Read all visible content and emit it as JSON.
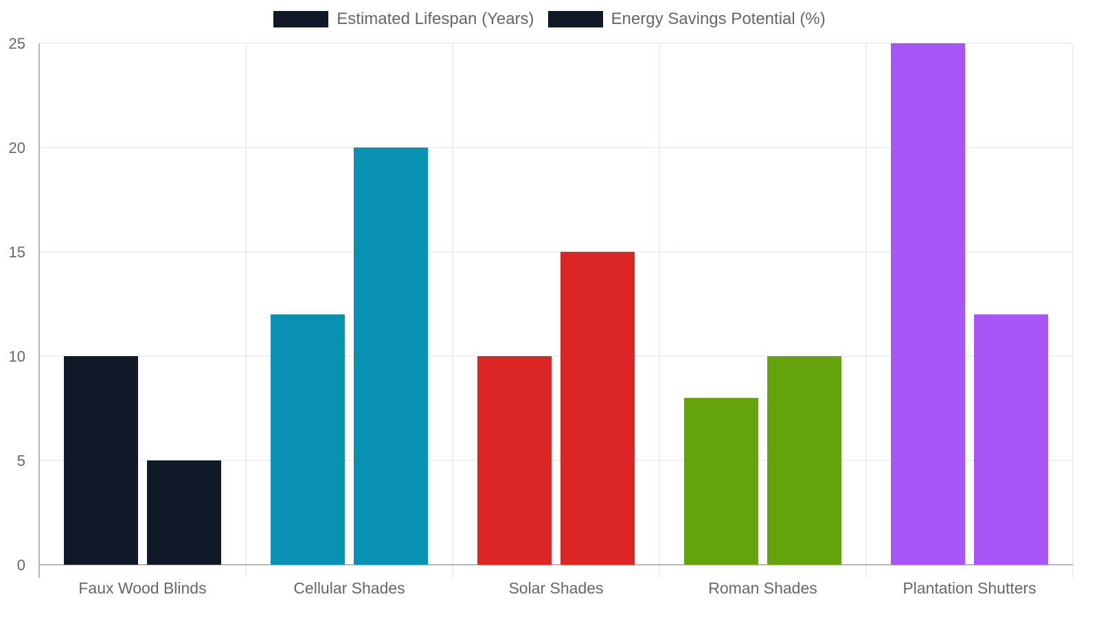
{
  "chart_data": {
    "type": "bar",
    "categories": [
      "Faux Wood Blinds",
      "Cellular Shades",
      "Solar Shades",
      "Roman Shades",
      "Plantation Shutters"
    ],
    "series": [
      {
        "name": "Estimated Lifespan (Years)",
        "values": [
          10,
          12,
          10,
          8,
          25
        ]
      },
      {
        "name": "Energy Savings Potential (%)",
        "values": [
          5,
          20,
          15,
          10,
          12
        ]
      }
    ],
    "category_colors": [
      "#111827",
      "#0891b2",
      "#dc2626",
      "#65a30d",
      "#a855f7"
    ],
    "legend_swatch_color": "#111827",
    "ylim": [
      0,
      25
    ],
    "yticks": [
      0,
      5,
      10,
      15,
      20,
      25
    ],
    "grid": true,
    "legend_position": "top-center",
    "title": "",
    "xlabel": "",
    "ylabel": ""
  }
}
